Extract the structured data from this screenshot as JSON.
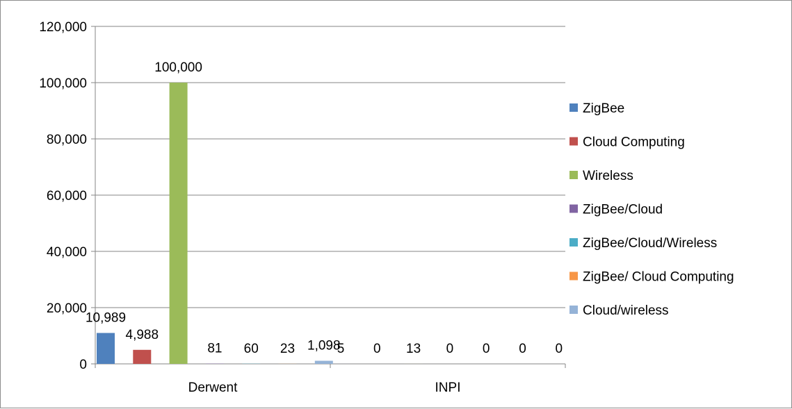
{
  "chart_data": {
    "type": "bar",
    "title": "",
    "xlabel": "",
    "ylabel": "",
    "categories": [
      "Derwent",
      "INPI"
    ],
    "ylim": [
      0,
      120000
    ],
    "yticks": [
      0,
      20000,
      40000,
      60000,
      80000,
      100000,
      120000
    ],
    "ytick_labels": [
      "0",
      "20,000",
      "40,000",
      "60,000",
      "80,000",
      "100,000",
      "120,000"
    ],
    "grid": true,
    "legend_position": "right",
    "series": [
      {
        "name": "ZigBee",
        "color": "#4f81bd",
        "values": [
          10989,
          5
        ],
        "labels": [
          "10,989",
          "5"
        ]
      },
      {
        "name": "Cloud Computing",
        "color": "#c0504d",
        "values": [
          4988,
          0
        ],
        "labels": [
          "4,988",
          "0"
        ]
      },
      {
        "name": "Wireless",
        "color": "#9bbb59",
        "values": [
          100000,
          13
        ],
        "labels": [
          "100,000",
          "13"
        ]
      },
      {
        "name": "ZigBee/Cloud",
        "color": "#8064a2",
        "values": [
          81,
          0
        ],
        "labels": [
          "81",
          "0"
        ]
      },
      {
        "name": "ZigBee/Cloud/Wireless",
        "color": "#4bacc6",
        "values": [
          60,
          0
        ],
        "labels": [
          "60",
          "0"
        ]
      },
      {
        "name": "ZigBee/ Cloud Computing",
        "color": "#f79646",
        "values": [
          23,
          0
        ],
        "labels": [
          "23",
          "0"
        ]
      },
      {
        "name": "Cloud/wireless",
        "color": "#95b3d7",
        "values": [
          1098,
          0
        ],
        "labels": [
          "1,098",
          "0"
        ]
      }
    ]
  }
}
